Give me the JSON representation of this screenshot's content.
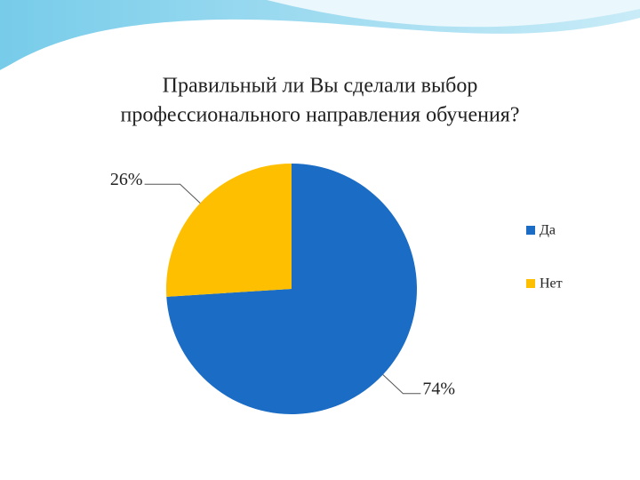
{
  "chart_data": {
    "type": "pie",
    "title": [
      "Правильный ли Вы сделали выбор",
      "профессионального направления обучения?"
    ],
    "categories": [
      "Да",
      "Нет"
    ],
    "values": [
      74,
      26
    ],
    "value_labels": [
      "74%",
      "26%"
    ],
    "colors": [
      "#1a6cc4",
      "#fdbf00"
    ],
    "legend": "right"
  }
}
